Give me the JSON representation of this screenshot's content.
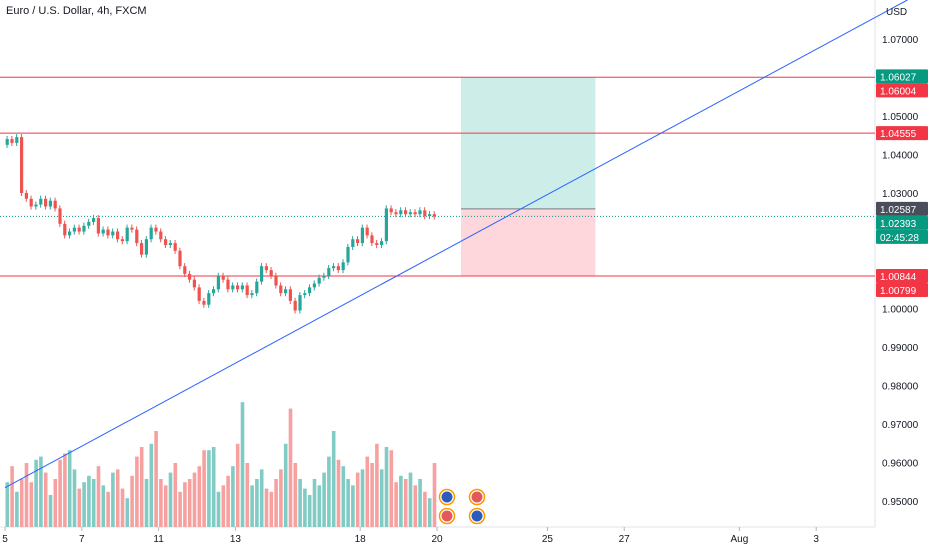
{
  "title": "Euro / U.S. Dollar, 4h, FXCM",
  "currency_label": "USD",
  "colors": {
    "up": "#26a69a",
    "down": "#ef5350",
    "vol_up": "#80cbc4",
    "vol_down": "#f6a1a0",
    "level_line": "#f23645",
    "trend_line": "#2962ff",
    "target_zone": "#cdeee8",
    "stop_zone": "#fdd7db",
    "price_tag_dark": "#4a4e5a",
    "price_tag_green": "#089981"
  },
  "chart_data": {
    "type": "candlestick",
    "symbol": "EURUSD",
    "interval": "4h",
    "ylim": [
      0.9433,
      1.0801
    ],
    "y_ticks": [
      "1.07000",
      "1.05000",
      "1.04000",
      "1.03000",
      "1.00000",
      "0.99000",
      "0.98000",
      "0.97000",
      "0.96000",
      "0.95000"
    ],
    "y_tick_values": [
      1.07,
      1.05,
      1.04,
      1.03,
      1.0,
      0.99,
      0.98,
      0.97,
      0.96,
      0.95
    ],
    "x_ticks": [
      "5",
      "7",
      "11",
      "13",
      "18",
      "20",
      "25",
      "27",
      "Aug",
      "3"
    ],
    "x_tick_bars": [
      0,
      16,
      32,
      48,
      74,
      90,
      113,
      129,
      153,
      169
    ],
    "horizontal_levels": [
      1.06004,
      1.04555,
      1.00844
    ],
    "price_tags": [
      {
        "label": "1.06027",
        "value": 1.06027,
        "color": "green"
      },
      {
        "label": "1.06004",
        "value": 1.06004,
        "color": "red"
      },
      {
        "label": "1.04555",
        "value": 1.04555,
        "color": "red"
      },
      {
        "label": "1.02587",
        "value": 1.02587,
        "color": "dark"
      },
      {
        "label": "1.02393",
        "value": 1.02393,
        "color": "green"
      },
      {
        "label": "02:45:28",
        "value": 1.02243,
        "color": "green"
      },
      {
        "label": "1.00844",
        "value": 1.00844,
        "color": "red"
      },
      {
        "label": "1.00799",
        "value": 1.00799,
        "color": "red"
      }
    ],
    "current_price": 1.02393,
    "position": {
      "start_bar": 95,
      "end_bar": 123,
      "entry": 1.02587,
      "target": 1.06004,
      "stop": 1.00844
    },
    "trend_line": {
      "bar1": 0,
      "price1": 0.9535,
      "bar2": 188,
      "price2": 1.0801
    },
    "candles": [
      [
        1.0425,
        1.044
      ],
      [
        1.044,
        1.043
      ],
      [
        1.043,
        1.0445
      ],
      [
        1.0445,
        1.03
      ],
      [
        1.03,
        1.0285
      ],
      [
        1.0285,
        1.0265
      ],
      [
        1.0265,
        1.027
      ],
      [
        1.027,
        1.0285
      ],
      [
        1.0285,
        1.0265
      ],
      [
        1.0265,
        1.028
      ],
      [
        1.028,
        1.026
      ],
      [
        1.026,
        1.022
      ],
      [
        1.022,
        1.019
      ],
      [
        1.019,
        1.02
      ],
      [
        1.02,
        1.021
      ],
      [
        1.021,
        1.02
      ],
      [
        1.02,
        1.0215
      ],
      [
        1.0215,
        1.0225
      ],
      [
        1.0225,
        1.0235
      ],
      [
        1.0235,
        1.0195
      ],
      [
        1.0195,
        1.0205
      ],
      [
        1.0205,
        1.019
      ],
      [
        1.019,
        1.02
      ],
      [
        1.02,
        1.018
      ],
      [
        1.018,
        1.0175
      ],
      [
        1.0175,
        1.021
      ],
      [
        1.021,
        1.0205
      ],
      [
        1.0205,
        1.017
      ],
      [
        1.017,
        1.014
      ],
      [
        1.014,
        1.018
      ],
      [
        1.018,
        1.021
      ],
      [
        1.021,
        1.02
      ],
      [
        1.02,
        1.018
      ],
      [
        1.018,
        1.0165
      ],
      [
        1.0165,
        1.017
      ],
      [
        1.017,
        1.015
      ],
      [
        1.015,
        1.011
      ],
      [
        1.011,
        1.009
      ],
      [
        1.009,
        1.0075
      ],
      [
        1.0075,
        1.0055
      ],
      [
        1.0055,
        1.002
      ],
      [
        1.002,
        1.001
      ],
      [
        1.001,
        1.004
      ],
      [
        1.004,
        1.005
      ],
      [
        1.005,
        1.0085
      ],
      [
        1.0085,
        1.0075
      ],
      [
        1.0075,
        1.005
      ],
      [
        1.005,
        1.006
      ],
      [
        1.006,
        1.005
      ],
      [
        1.005,
        1.006
      ],
      [
        1.006,
        1.0035
      ],
      [
        1.0035,
        1.004
      ],
      [
        1.004,
        1.007
      ],
      [
        1.007,
        1.011
      ],
      [
        1.011,
        1.01
      ],
      [
        1.01,
        1.0085
      ],
      [
        1.0085,
        1.006
      ],
      [
        1.006,
        1.004
      ],
      [
        1.004,
        1.005
      ],
      [
        1.005,
        1.002
      ],
      [
        1.002,
        0.9995
      ],
      [
        0.9995,
        1.0035
      ],
      [
        1.0035,
        1.004
      ],
      [
        1.004,
        1.0055
      ],
      [
        1.0055,
        1.0065
      ],
      [
        1.0065,
        1.008
      ],
      [
        1.008,
        1.0085
      ],
      [
        1.0085,
        1.0105
      ],
      [
        1.0105,
        1.011
      ],
      [
        1.011,
        1.01
      ],
      [
        1.01,
        1.012
      ],
      [
        1.012,
        1.016
      ],
      [
        1.016,
        1.018
      ],
      [
        1.018,
        1.017
      ],
      [
        1.017,
        1.021
      ],
      [
        1.021,
        1.019
      ],
      [
        1.019,
        1.017
      ],
      [
        1.017,
        1.0165
      ],
      [
        1.0165,
        1.0175
      ],
      [
        1.0175,
        1.026
      ],
      [
        1.026,
        1.025
      ],
      [
        1.025,
        1.0245
      ],
      [
        1.0245,
        1.0255
      ],
      [
        1.0255,
        1.0245
      ],
      [
        1.0245,
        1.025
      ],
      [
        1.025,
        1.0245
      ],
      [
        1.0245,
        1.0255
      ],
      [
        1.0255,
        1.024
      ],
      [
        1.024,
        1.0245
      ],
      [
        1.0245,
        1.0239
      ]
    ],
    "volumes": [
      0.28,
      0.38,
      0.22,
      0.3,
      0.4,
      0.28,
      0.42,
      0.44,
      0.34,
      0.2,
      0.3,
      0.42,
      0.46,
      0.48,
      0.36,
      0.24,
      0.28,
      0.32,
      0.3,
      0.38,
      0.26,
      0.22,
      0.34,
      0.36,
      0.24,
      0.18,
      0.32,
      0.44,
      0.5,
      0.3,
      0.52,
      0.6,
      0.3,
      0.26,
      0.34,
      0.4,
      0.22,
      0.28,
      0.3,
      0.34,
      0.38,
      0.48,
      0.48,
      0.5,
      0.22,
      0.26,
      0.32,
      0.38,
      0.52,
      0.78,
      0.4,
      0.26,
      0.3,
      0.36,
      0.24,
      0.22,
      0.3,
      0.36,
      0.52,
      0.74,
      0.4,
      0.3,
      0.24,
      0.2,
      0.3,
      0.26,
      0.34,
      0.44,
      0.6,
      0.42,
      0.38,
      0.3,
      0.26,
      0.34,
      0.36,
      0.44,
      0.4,
      0.52,
      0.36,
      0.5,
      0.48,
      0.28,
      0.32,
      0.3,
      0.34,
      0.26,
      0.3,
      0.22,
      0.18,
      0.4
    ],
    "current_volume": 0.4
  }
}
